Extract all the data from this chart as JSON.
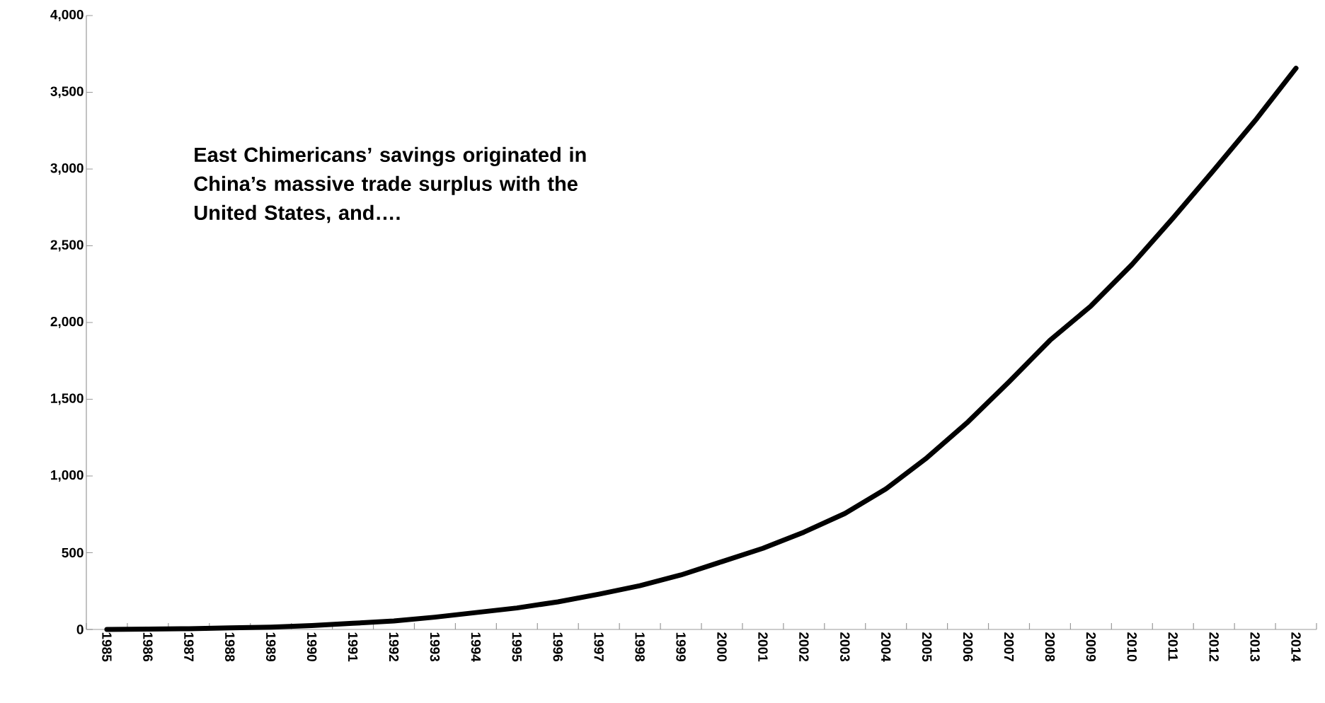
{
  "chart_data": {
    "type": "line",
    "categories": [
      "1985",
      "1986",
      "1987",
      "1988",
      "1989",
      "1990",
      "1991",
      "1992",
      "1993",
      "1994",
      "1995",
      "1996",
      "1997",
      "1998",
      "1999",
      "2000",
      "2001",
      "2002",
      "2003",
      "2004",
      "2005",
      "2006",
      "2007",
      "2008",
      "2009",
      "2010",
      "2011",
      "2012",
      "2013",
      "2014"
    ],
    "series": [
      {
        "color": "#000000",
        "values": [
          0,
          2,
          5,
          10,
          15,
          25,
          40,
          55,
          80,
          110,
          140,
          180,
          230,
          285,
          355,
          442,
          529,
          634,
          756,
          916,
          1119,
          1352,
          1613,
          1884,
          2108,
          2378,
          2680,
          2994,
          3314,
          3657
        ]
      }
    ],
    "ylim": [
      0,
      4000
    ],
    "yticks": [
      {
        "value": 0,
        "label": "0"
      },
      {
        "value": 500,
        "label": "500"
      },
      {
        "value": 1000,
        "label": "1,000"
      },
      {
        "value": 1500,
        "label": "1,500"
      },
      {
        "value": 2000,
        "label": "2,000"
      },
      {
        "value": 2500,
        "label": "2,500"
      },
      {
        "value": 3000,
        "label": "3,000"
      },
      {
        "value": 3500,
        "label": "3,500"
      },
      {
        "value": 4000,
        "label": "4,000"
      }
    ],
    "annotations": [
      "East Chimericans’ savings originated in China’s massive trade surplus with the United States, and…."
    ]
  }
}
